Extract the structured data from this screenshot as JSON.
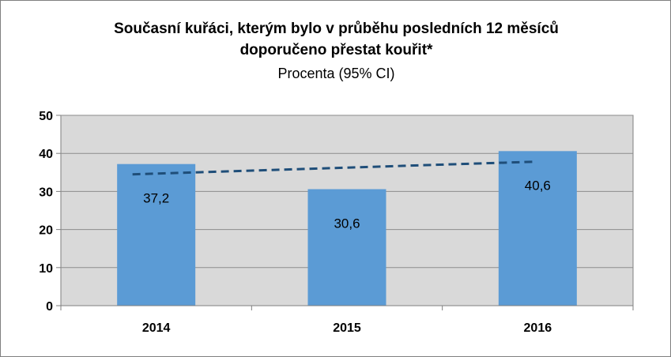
{
  "chart_data": {
    "type": "bar",
    "title": "Současní kuřáci, kterým bylo v průběhu posledních 12 měsíců",
    "title_line2": "doporučeno přestat kouřit*",
    "subtitle": "Procenta (95% CI)",
    "categories": [
      "2014",
      "2015",
      "2016"
    ],
    "values": [
      37.2,
      30.6,
      40.6
    ],
    "data_labels": [
      "37,2",
      "30,6",
      "40,6"
    ],
    "y_ticks": [
      "0",
      "10",
      "20",
      "30",
      "40",
      "50"
    ],
    "ylim": [
      0,
      50
    ],
    "trendline": {
      "style": "dashed",
      "color": "#1f4e79",
      "start": 34.5,
      "end": 37.8
    },
    "bar_color": "#5b9bd5",
    "plot_background": "#d9d9d9",
    "grid": true,
    "legend": "none"
  }
}
